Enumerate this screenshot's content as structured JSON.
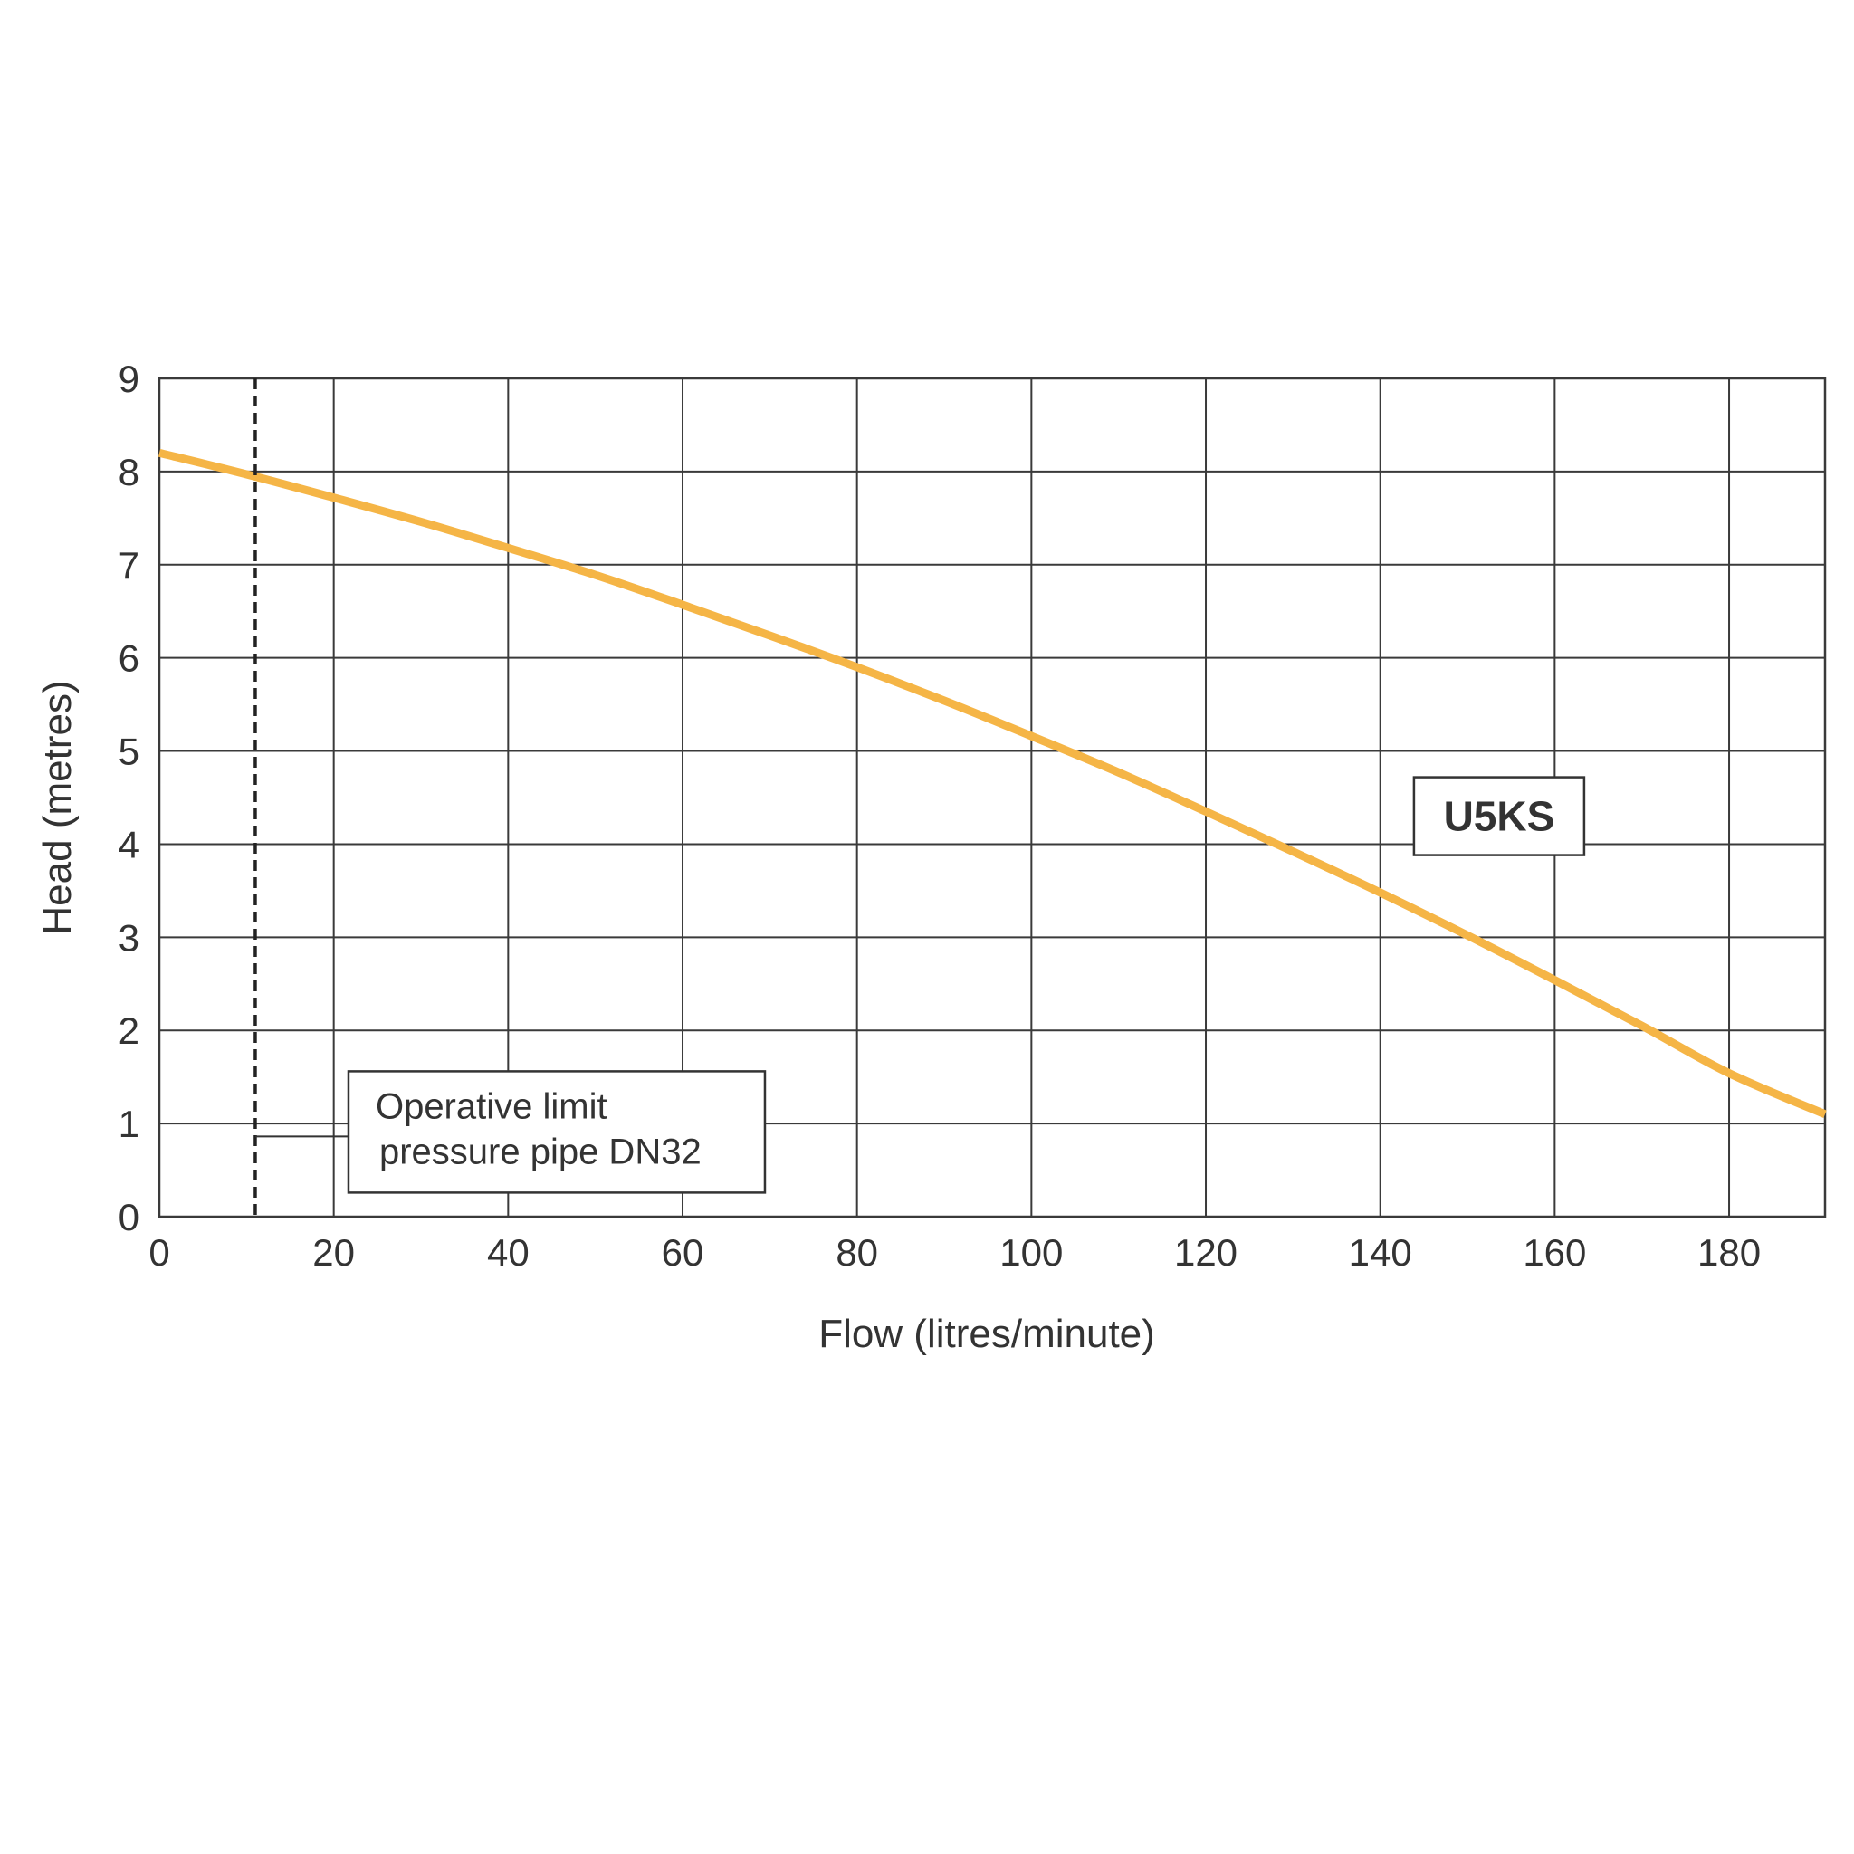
{
  "chart_data": {
    "type": "line",
    "title": "",
    "xlabel": "Flow (litres/minute)",
    "ylabel": "Head (metres)",
    "xlim": [
      0,
      191
    ],
    "ylim": [
      0,
      9
    ],
    "x_ticks": [
      0,
      20,
      40,
      60,
      80,
      100,
      120,
      140,
      160,
      180
    ],
    "y_ticks": [
      0,
      1,
      2,
      3,
      4,
      5,
      6,
      7,
      8,
      9
    ],
    "grid": true,
    "series": [
      {
        "name": "U5KS",
        "color": "#F5B546",
        "x": [
          0,
          10,
          20,
          30,
          40,
          50,
          60,
          70,
          80,
          90,
          100,
          110,
          120,
          130,
          140,
          150,
          160,
          170,
          180,
          191
        ],
        "y": [
          8.2,
          7.97,
          7.72,
          7.46,
          7.18,
          6.89,
          6.57,
          6.24,
          5.9,
          5.54,
          5.16,
          4.77,
          4.35,
          3.92,
          3.48,
          3.02,
          2.54,
          2.05,
          1.54,
          1.1
        ]
      }
    ],
    "annotations": [
      {
        "kind": "vertical-limit-line",
        "x": 11,
        "style": "dashed",
        "color": "#222222",
        "text_lines": [
          "Operative limit",
          "pressure pipe DN32"
        ],
        "y": 0.9
      }
    ],
    "series_label": {
      "text": "U5KS",
      "x": 153,
      "y": 4.3
    }
  }
}
